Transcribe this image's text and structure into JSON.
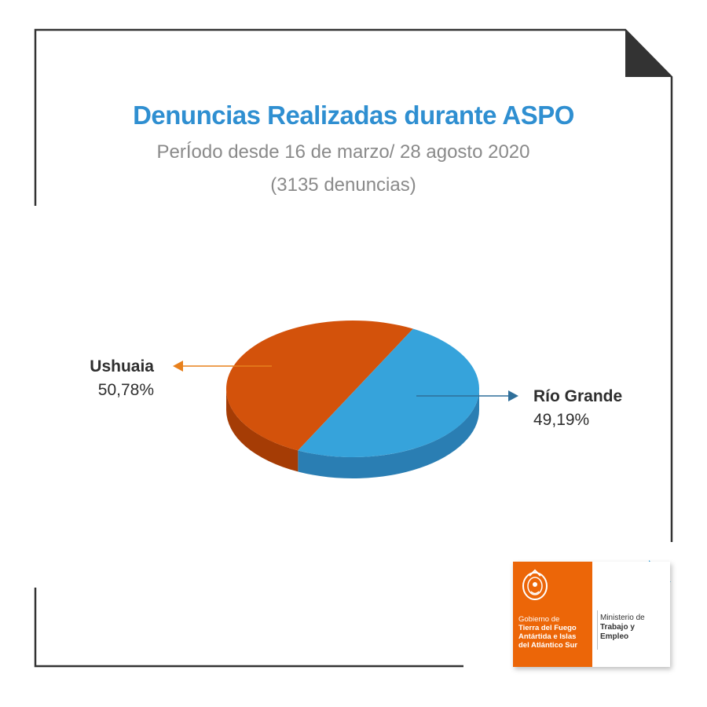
{
  "header": {
    "title": "Denuncias Realizadas durante ASPO",
    "subtitle": "PerÍodo desde 16 de marzo/ 28 agosto 2020",
    "count_label": "(3135 denuncias)"
  },
  "colors": {
    "title": "#2f8fd1",
    "ushuaia_top": "#d3520b",
    "ushuaia_side": "#a53c05",
    "rio_grande_top": "#36a3db",
    "rio_grande_side": "#2a7eb3",
    "arrow_ushuaia": "#e8801c",
    "arrow_rio_grande": "#2f6f9a",
    "frame": "#333333",
    "logo_orange": "#ec6608",
    "accent_blue": "#3aa3dc"
  },
  "chart_data": {
    "type": "pie",
    "title": "Denuncias Realizadas durante ASPO",
    "subtitle": "PerÍodo desde 16 de marzo/ 28 agosto 2020",
    "total": 3135,
    "series": [
      {
        "name": "Ushuaia",
        "value": 50.78,
        "value_label": "50,78%",
        "color": "#d3520b"
      },
      {
        "name": "Río Grande",
        "value": 49.19,
        "value_label": "49,19%",
        "color": "#36a3db"
      }
    ]
  },
  "labels": {
    "ushuaia_name": "Ushuaia",
    "ushuaia_pct": "50,78%",
    "rio_grande_name": "Río Grande",
    "rio_grande_pct": "49,19%"
  },
  "logo": {
    "gov_line1": "Gobierno de",
    "gov_line2": "Tierra del Fuego",
    "gov_line3": "Antártida e Islas",
    "gov_line4": "del Atlántico Sur",
    "ministry_line1": "Ministerio de",
    "ministry_line2": "Trabajo y",
    "ministry_line3": "Empleo"
  }
}
